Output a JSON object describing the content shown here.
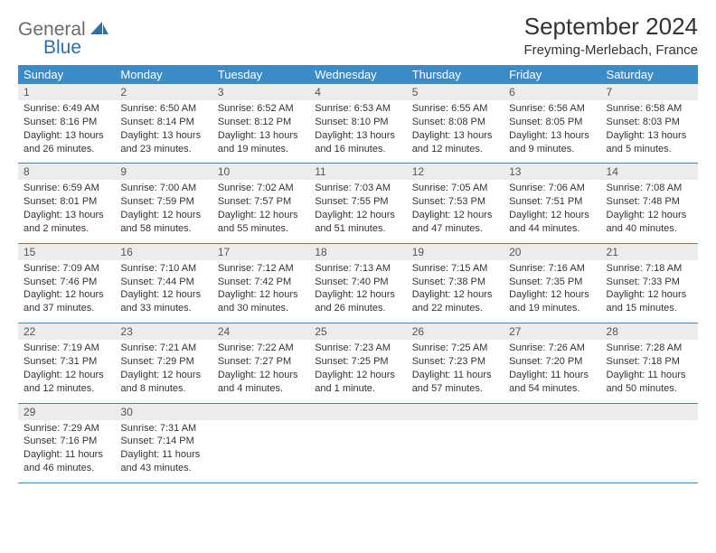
{
  "brand": {
    "word1": "General",
    "word2": "Blue"
  },
  "title": "September 2024",
  "subtitle": "Freyming-Merlebach, France",
  "day_headers": [
    "Sunday",
    "Monday",
    "Tuesday",
    "Wednesday",
    "Thursday",
    "Friday",
    "Saturday"
  ],
  "colors": {
    "header_bg": "#3b8bc6",
    "header_fg": "#ffffff",
    "daynum_bg": "#ececec",
    "row_border": "#3b8bc6",
    "text": "#333333",
    "logo_gray": "#6b6b6b",
    "logo_blue": "#2f6fa8"
  },
  "weeks": [
    [
      {
        "n": "1",
        "sr": "Sunrise: 6:49 AM",
        "ss": "Sunset: 8:16 PM",
        "dl": "Daylight: 13 hours and 26 minutes."
      },
      {
        "n": "2",
        "sr": "Sunrise: 6:50 AM",
        "ss": "Sunset: 8:14 PM",
        "dl": "Daylight: 13 hours and 23 minutes."
      },
      {
        "n": "3",
        "sr": "Sunrise: 6:52 AM",
        "ss": "Sunset: 8:12 PM",
        "dl": "Daylight: 13 hours and 19 minutes."
      },
      {
        "n": "4",
        "sr": "Sunrise: 6:53 AM",
        "ss": "Sunset: 8:10 PM",
        "dl": "Daylight: 13 hours and 16 minutes."
      },
      {
        "n": "5",
        "sr": "Sunrise: 6:55 AM",
        "ss": "Sunset: 8:08 PM",
        "dl": "Daylight: 13 hours and 12 minutes."
      },
      {
        "n": "6",
        "sr": "Sunrise: 6:56 AM",
        "ss": "Sunset: 8:05 PM",
        "dl": "Daylight: 13 hours and 9 minutes."
      },
      {
        "n": "7",
        "sr": "Sunrise: 6:58 AM",
        "ss": "Sunset: 8:03 PM",
        "dl": "Daylight: 13 hours and 5 minutes."
      }
    ],
    [
      {
        "n": "8",
        "sr": "Sunrise: 6:59 AM",
        "ss": "Sunset: 8:01 PM",
        "dl": "Daylight: 13 hours and 2 minutes."
      },
      {
        "n": "9",
        "sr": "Sunrise: 7:00 AM",
        "ss": "Sunset: 7:59 PM",
        "dl": "Daylight: 12 hours and 58 minutes."
      },
      {
        "n": "10",
        "sr": "Sunrise: 7:02 AM",
        "ss": "Sunset: 7:57 PM",
        "dl": "Daylight: 12 hours and 55 minutes."
      },
      {
        "n": "11",
        "sr": "Sunrise: 7:03 AM",
        "ss": "Sunset: 7:55 PM",
        "dl": "Daylight: 12 hours and 51 minutes."
      },
      {
        "n": "12",
        "sr": "Sunrise: 7:05 AM",
        "ss": "Sunset: 7:53 PM",
        "dl": "Daylight: 12 hours and 47 minutes."
      },
      {
        "n": "13",
        "sr": "Sunrise: 7:06 AM",
        "ss": "Sunset: 7:51 PM",
        "dl": "Daylight: 12 hours and 44 minutes."
      },
      {
        "n": "14",
        "sr": "Sunrise: 7:08 AM",
        "ss": "Sunset: 7:48 PM",
        "dl": "Daylight: 12 hours and 40 minutes."
      }
    ],
    [
      {
        "n": "15",
        "sr": "Sunrise: 7:09 AM",
        "ss": "Sunset: 7:46 PM",
        "dl": "Daylight: 12 hours and 37 minutes."
      },
      {
        "n": "16",
        "sr": "Sunrise: 7:10 AM",
        "ss": "Sunset: 7:44 PM",
        "dl": "Daylight: 12 hours and 33 minutes."
      },
      {
        "n": "17",
        "sr": "Sunrise: 7:12 AM",
        "ss": "Sunset: 7:42 PM",
        "dl": "Daylight: 12 hours and 30 minutes."
      },
      {
        "n": "18",
        "sr": "Sunrise: 7:13 AM",
        "ss": "Sunset: 7:40 PM",
        "dl": "Daylight: 12 hours and 26 minutes."
      },
      {
        "n": "19",
        "sr": "Sunrise: 7:15 AM",
        "ss": "Sunset: 7:38 PM",
        "dl": "Daylight: 12 hours and 22 minutes."
      },
      {
        "n": "20",
        "sr": "Sunrise: 7:16 AM",
        "ss": "Sunset: 7:35 PM",
        "dl": "Daylight: 12 hours and 19 minutes."
      },
      {
        "n": "21",
        "sr": "Sunrise: 7:18 AM",
        "ss": "Sunset: 7:33 PM",
        "dl": "Daylight: 12 hours and 15 minutes."
      }
    ],
    [
      {
        "n": "22",
        "sr": "Sunrise: 7:19 AM",
        "ss": "Sunset: 7:31 PM",
        "dl": "Daylight: 12 hours and 12 minutes."
      },
      {
        "n": "23",
        "sr": "Sunrise: 7:21 AM",
        "ss": "Sunset: 7:29 PM",
        "dl": "Daylight: 12 hours and 8 minutes."
      },
      {
        "n": "24",
        "sr": "Sunrise: 7:22 AM",
        "ss": "Sunset: 7:27 PM",
        "dl": "Daylight: 12 hours and 4 minutes."
      },
      {
        "n": "25",
        "sr": "Sunrise: 7:23 AM",
        "ss": "Sunset: 7:25 PM",
        "dl": "Daylight: 12 hours and 1 minute."
      },
      {
        "n": "26",
        "sr": "Sunrise: 7:25 AM",
        "ss": "Sunset: 7:23 PM",
        "dl": "Daylight: 11 hours and 57 minutes."
      },
      {
        "n": "27",
        "sr": "Sunrise: 7:26 AM",
        "ss": "Sunset: 7:20 PM",
        "dl": "Daylight: 11 hours and 54 minutes."
      },
      {
        "n": "28",
        "sr": "Sunrise: 7:28 AM",
        "ss": "Sunset: 7:18 PM",
        "dl": "Daylight: 11 hours and 50 minutes."
      }
    ],
    [
      {
        "n": "29",
        "sr": "Sunrise: 7:29 AM",
        "ss": "Sunset: 7:16 PM",
        "dl": "Daylight: 11 hours and 46 minutes."
      },
      {
        "n": "30",
        "sr": "Sunrise: 7:31 AM",
        "ss": "Sunset: 7:14 PM",
        "dl": "Daylight: 11 hours and 43 minutes."
      },
      null,
      null,
      null,
      null,
      null
    ]
  ]
}
